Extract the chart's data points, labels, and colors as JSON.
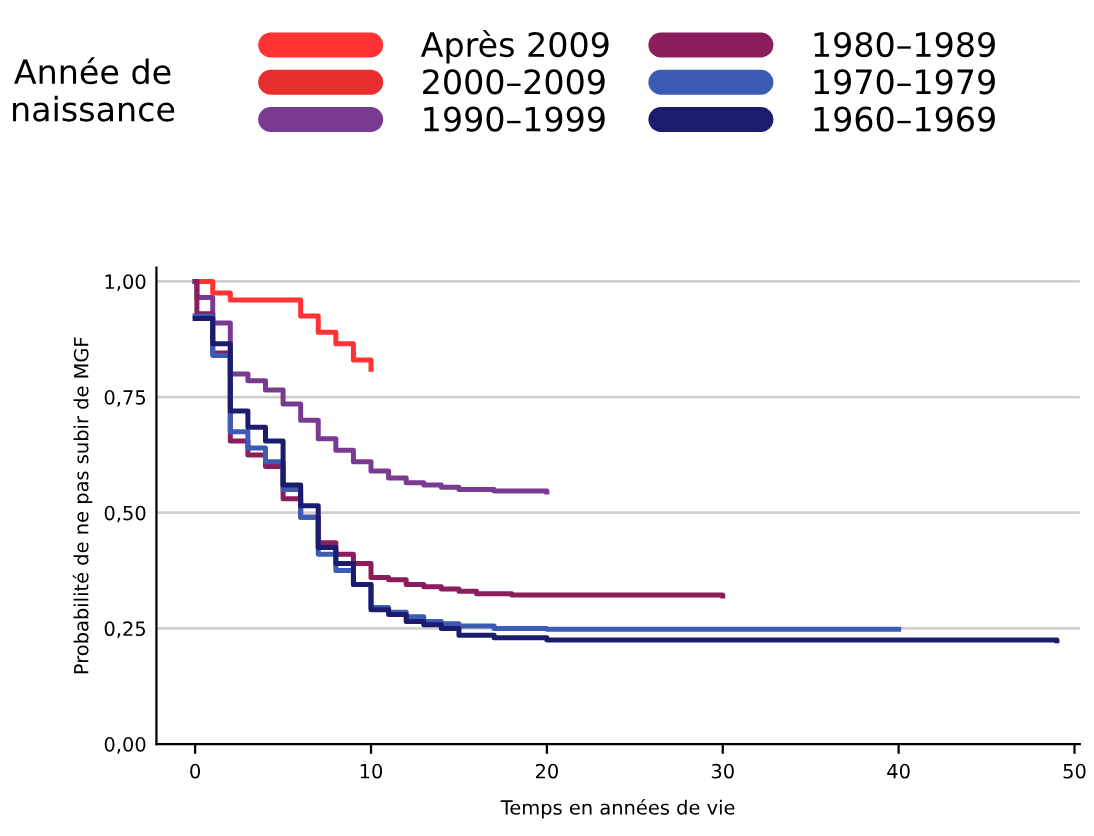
{
  "chart_data": {
    "type": "step",
    "xlabel": "Temps en années de vie",
    "ylabel": "Probabilité de ne pas subir de MGF",
    "legend_title": "Année de naissance",
    "xlim": [
      -2.2,
      50.3
    ],
    "xticks": [
      0,
      10,
      20,
      30,
      40,
      50
    ],
    "ylim": [
      0,
      1.03
    ],
    "yticks": [
      {
        "value": 0,
        "label": "0,00"
      },
      {
        "value": 0.25,
        "label": "0,25"
      },
      {
        "value": 0.5,
        "label": "0,50"
      },
      {
        "value": 0.75,
        "label": "0,75"
      },
      {
        "value": 1,
        "label": "1,00"
      }
    ],
    "grid": "y",
    "legend": "top",
    "line_style": "solid",
    "marker": "none",
    "series": [
      {
        "name": "Après 2009",
        "color": "#ff3333",
        "x": [
          0,
          1,
          2,
          6,
          7,
          8,
          9,
          10
        ],
        "values": [
          1.0,
          0.975,
          0.96,
          0.925,
          0.89,
          0.865,
          0.83,
          0.81
        ]
      },
      {
        "name": "2000–2009",
        "color": "#e82e2d"
      },
      {
        "name": "1990–1999",
        "color": "#7b3a92",
        "x": [
          0,
          0.1,
          1,
          2,
          3,
          4,
          5,
          6,
          7,
          8,
          9,
          10,
          11,
          12,
          13,
          14,
          15,
          17,
          20
        ],
        "values": [
          1.0,
          0.965,
          0.91,
          0.8,
          0.785,
          0.765,
          0.735,
          0.7,
          0.66,
          0.635,
          0.61,
          0.59,
          0.575,
          0.565,
          0.56,
          0.555,
          0.55,
          0.547,
          0.545
        ]
      },
      {
        "name": "1980–1989",
        "color": "#8b1d5c",
        "x": [
          0,
          0.1,
          1,
          2,
          3,
          4,
          5,
          6,
          7,
          8,
          9,
          10,
          11,
          12,
          13,
          14,
          15,
          16,
          18,
          30
        ],
        "values": [
          1.0,
          0.93,
          0.845,
          0.655,
          0.625,
          0.6,
          0.53,
          0.49,
          0.435,
          0.41,
          0.39,
          0.36,
          0.355,
          0.345,
          0.34,
          0.335,
          0.33,
          0.325,
          0.322,
          0.32
        ]
      },
      {
        "name": "1970–1979",
        "color": "#3b5bb5",
        "x": [
          0,
          1,
          2,
          3,
          4,
          5,
          6,
          7,
          8,
          9,
          10,
          11,
          12,
          13,
          14,
          15,
          17,
          20,
          40
        ],
        "values": [
          0.925,
          0.84,
          0.675,
          0.64,
          0.61,
          0.55,
          0.49,
          0.41,
          0.375,
          0.345,
          0.295,
          0.285,
          0.275,
          0.265,
          0.26,
          0.255,
          0.25,
          0.248,
          0.248
        ]
      },
      {
        "name": "1960–1969",
        "color": "#1c1c6e",
        "x": [
          0,
          1,
          2,
          3,
          4,
          5,
          6,
          7,
          8,
          9,
          10,
          11,
          12,
          13,
          14,
          15,
          17,
          20,
          49
        ],
        "values": [
          0.92,
          0.865,
          0.72,
          0.685,
          0.655,
          0.56,
          0.515,
          0.425,
          0.39,
          0.345,
          0.29,
          0.28,
          0.265,
          0.258,
          0.25,
          0.235,
          0.23,
          0.225,
          0.223
        ]
      }
    ]
  }
}
